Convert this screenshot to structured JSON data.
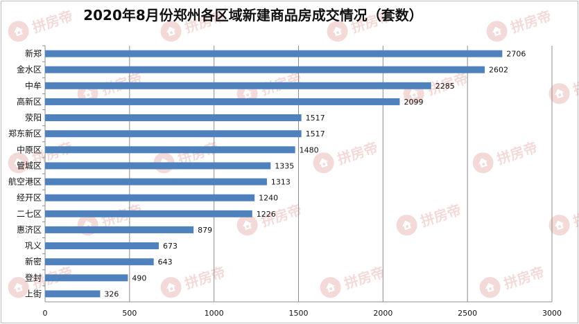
{
  "chart_data": {
    "type": "bar",
    "orientation": "horizontal",
    "title": "2020年8月份郑州各区域新建商品房成交情况（套数）",
    "categories": [
      "新郑",
      "金水区",
      "中牟",
      "高新区",
      "荥阳",
      "郑东新区",
      "中原区",
      "管城区",
      "航空港区",
      "经开区",
      "二七区",
      "惠济区",
      "巩义",
      "新密",
      "登封",
      "上街"
    ],
    "values": [
      2706,
      2602,
      2285,
      2099,
      1517,
      1517,
      1480,
      1335,
      1313,
      1240,
      1226,
      879,
      673,
      643,
      490,
      326
    ],
    "xlim": [
      0,
      3000
    ],
    "x_ticks": [
      0,
      500,
      1000,
      1500,
      2000,
      2500,
      3000
    ],
    "bar_color": "#4f81bd",
    "grid": true,
    "data_labels": true
  },
  "watermark": {
    "text": "拼房帝",
    "color": "#c0392b",
    "icon": "house-icon"
  }
}
